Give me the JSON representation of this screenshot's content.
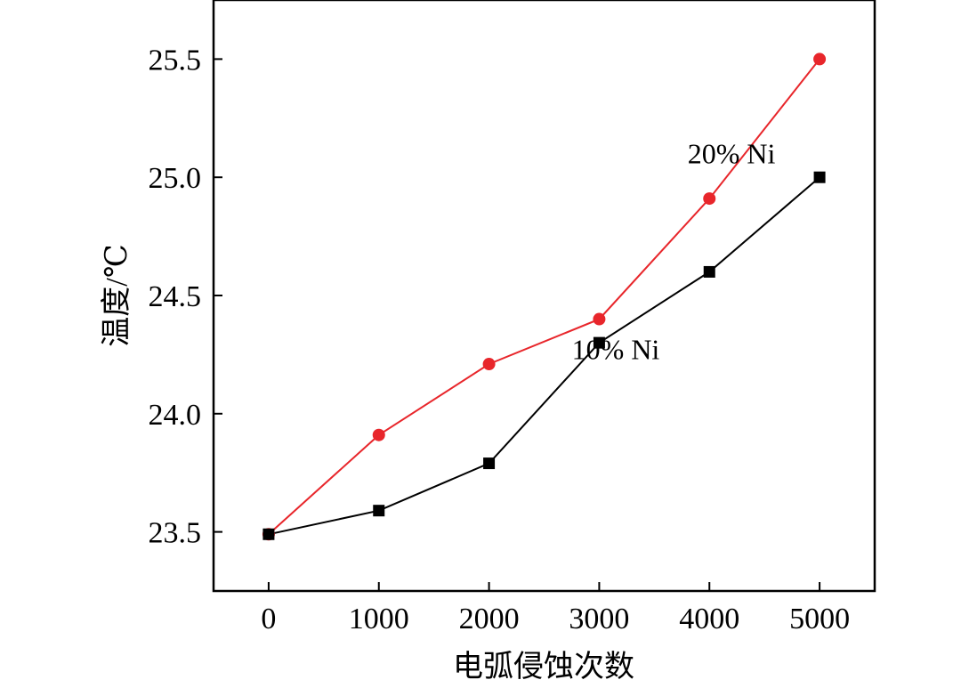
{
  "chart_data": {
    "type": "line",
    "xlabel": "电弧侵蚀次数",
    "ylabel": "温度/℃",
    "x": [
      0,
      1000,
      2000,
      3000,
      4000,
      5000
    ],
    "xticks": [
      "0",
      "1000",
      "2000",
      "3000",
      "4000",
      "5000"
    ],
    "yticks": [
      "23.5",
      "24.0",
      "24.5",
      "25.0",
      "25.5"
    ],
    "xlim": [
      -500,
      5500
    ],
    "ylim": [
      23.25,
      25.75
    ],
    "grid": false,
    "series": [
      {
        "name": "20% Ni",
        "values": [
          23.49,
          23.91,
          24.21,
          24.4,
          24.91,
          25.5
        ],
        "color": "#e8262b",
        "marker": "circle",
        "label_at": [
          4200,
          25.06
        ]
      },
      {
        "name": "10% Ni",
        "values": [
          23.49,
          23.59,
          23.79,
          24.3,
          24.6,
          25.0
        ],
        "color": "#000000",
        "marker": "square",
        "label_at": [
          3150,
          24.23
        ]
      }
    ]
  }
}
